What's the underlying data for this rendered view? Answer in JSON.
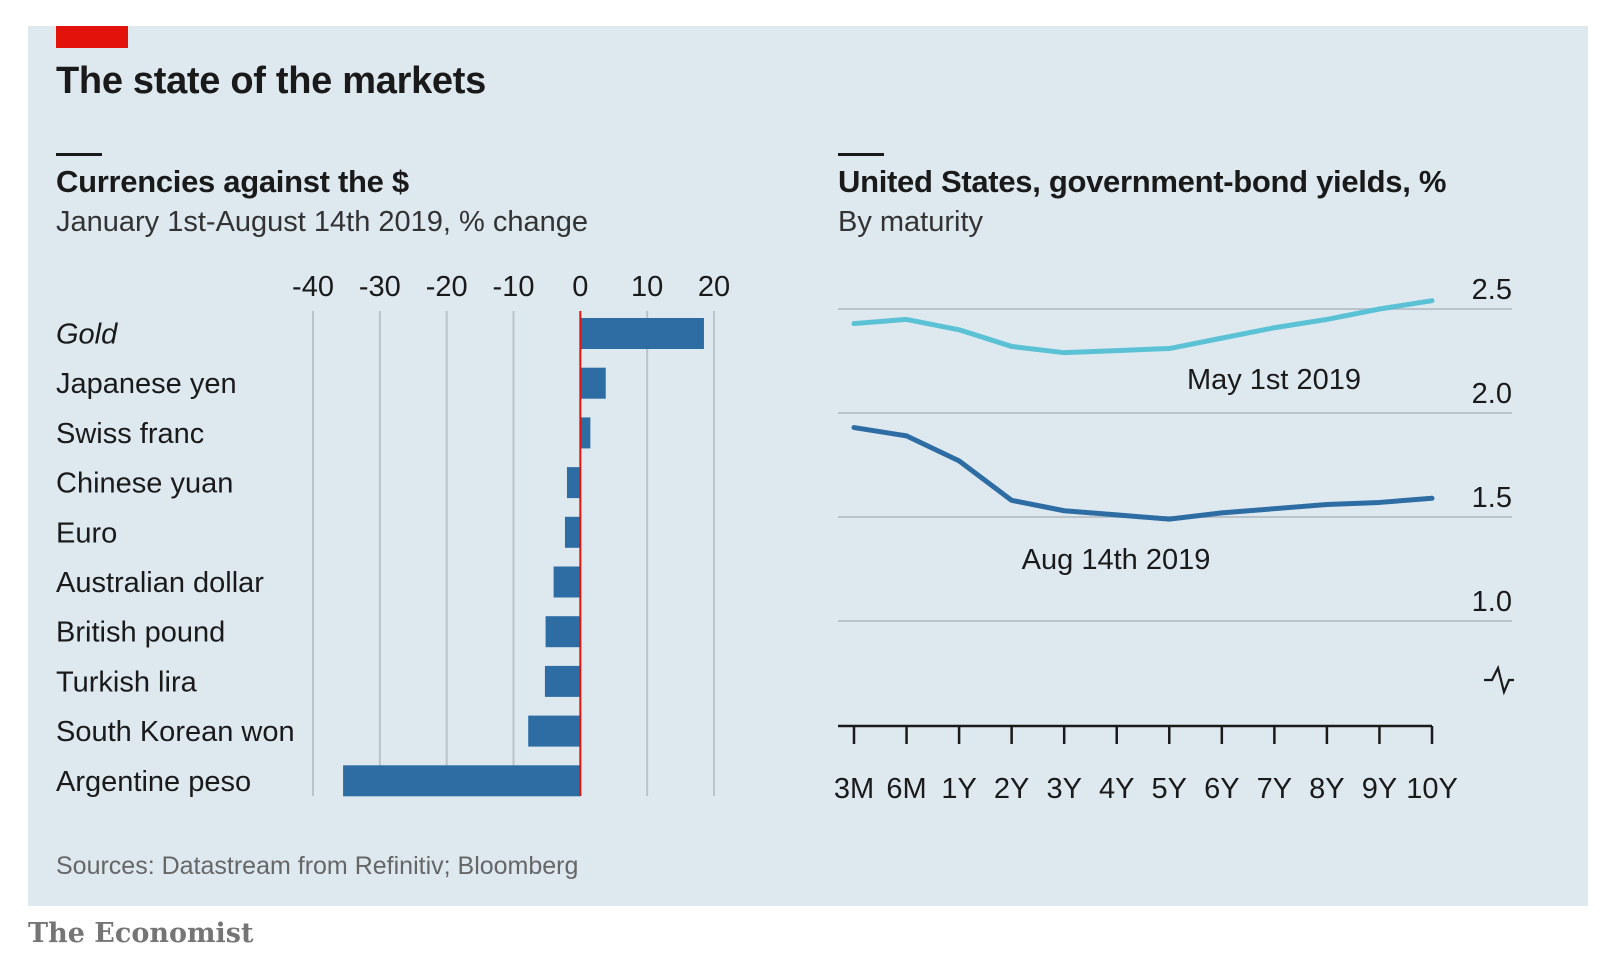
{
  "header": {
    "title": "The state of the markets"
  },
  "footer": {
    "source": "Sources: Datastream from Refinitiv; Bloomberg",
    "brand": "The Economist"
  },
  "colors": {
    "panel": "#dee8ef",
    "accent_red": "#e3120b",
    "bar": "#2e6da4",
    "line_may": "#5bc2d6",
    "line_aug": "#2e6da4",
    "grid": "#b9c3c9"
  },
  "chart_data": [
    {
      "type": "bar",
      "orientation": "horizontal",
      "title": "Currencies against the $",
      "subtitle": "January 1st-August 14th 2019, % change",
      "categories": [
        "Gold",
        "Japanese yen",
        "Swiss franc",
        "Chinese yuan",
        "Euro",
        "Australian dollar",
        "British pound",
        "Turkish lira",
        "South Korean won",
        "Argentine peso"
      ],
      "italic_categories": [
        "Gold"
      ],
      "values": [
        18.5,
        3.8,
        1.5,
        -2.0,
        -2.3,
        -4.0,
        -5.2,
        -5.3,
        -7.8,
        -35.5
      ],
      "xlim": [
        -40,
        20
      ],
      "xticks": [
        -40,
        -30,
        -20,
        -10,
        0,
        10,
        20
      ],
      "xtick_labels": [
        "-40",
        "-30",
        "-20",
        "-10",
        "0",
        "10",
        "20"
      ],
      "grid": true
    },
    {
      "type": "line",
      "title": "United States, government-bond yields, %",
      "subtitle": "By maturity",
      "categories": [
        "3M",
        "6M",
        "1Y",
        "2Y",
        "3Y",
        "4Y",
        "5Y",
        "6Y",
        "7Y",
        "8Y",
        "9Y",
        "10Y"
      ],
      "series": [
        {
          "name": "May 1st 2019",
          "values": [
            2.43,
            2.45,
            2.4,
            2.32,
            2.29,
            2.3,
            2.31,
            2.36,
            2.41,
            2.45,
            2.5,
            2.54
          ]
        },
        {
          "name": "Aug 14th 2019",
          "values": [
            1.93,
            1.89,
            1.77,
            1.58,
            1.53,
            1.51,
            1.49,
            1.52,
            1.54,
            1.56,
            1.57,
            1.59
          ]
        }
      ],
      "ylim": [
        0.5,
        2.5
      ],
      "yticks": [
        1.0,
        1.5,
        2.0,
        2.5
      ],
      "ytick_labels": [
        "1.0",
        "1.5",
        "2.0",
        "2.5"
      ],
      "axis_break_marker": true,
      "grid": true
    }
  ]
}
